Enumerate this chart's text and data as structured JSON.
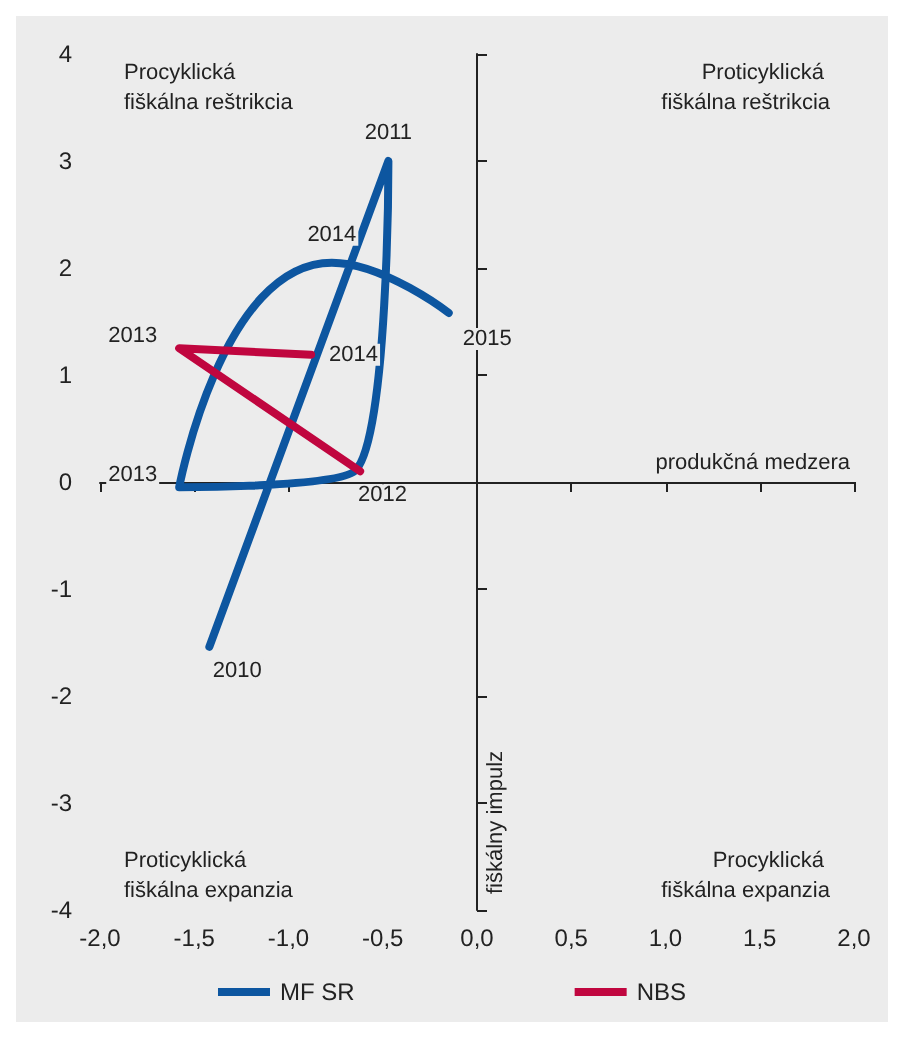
{
  "chart_data": {
    "type": "line",
    "xlabel": "produkčná medzera",
    "ylabel": "fiškálny impulz",
    "series": [
      {
        "name": "MF SR",
        "color": "#0d56a0",
        "x": [
          -1.42,
          -0.47,
          -0.65,
          -1.58,
          -0.77,
          -0.15
        ],
        "values": [
          -1.54,
          3.0,
          0.1,
          -0.05,
          2.05,
          1.58
        ]
      },
      {
        "name": "NBS",
        "color": "#c0063f",
        "x": [
          -0.62,
          -1.58,
          -0.88
        ],
        "values": [
          0.1,
          1.25,
          1.19
        ]
      }
    ],
    "xlim": [
      -2,
      2
    ],
    "ylim": [
      -4,
      4
    ],
    "xticks": [
      {
        "value": -2,
        "label": "-2,0"
      },
      {
        "value": -1.5,
        "label": "-1,5"
      },
      {
        "value": -1,
        "label": "-1,0"
      },
      {
        "value": -0.5,
        "label": "-0,5"
      },
      {
        "value": 0,
        "label": "0,0"
      },
      {
        "value": 0.5,
        "label": "0,5"
      },
      {
        "value": 1,
        "label": "1,0"
      },
      {
        "value": 1.5,
        "label": "1,5"
      },
      {
        "value": 2,
        "label": "2,0"
      }
    ],
    "yticks": [
      -4,
      -3,
      -2,
      -1,
      0,
      1,
      2,
      3,
      4
    ],
    "annotations": [
      "Procyklická fiškálna reštrikcia",
      "Proticyklická fiškálna reštrikcia",
      "Proticyklická fiškálna expanzia",
      "Procyklická fiškálna expanzia",
      {
        "text": "2010",
        "x": -1.42,
        "y": -1.54
      },
      {
        "text": "2011",
        "x": -0.47,
        "y": 3.0
      },
      {
        "text": "2012",
        "x": -0.65,
        "y": 0.1
      },
      {
        "text": "2013",
        "x": -1.58,
        "y": -0.05
      },
      {
        "text": "2014",
        "x": -0.77,
        "y": 2.05
      },
      {
        "text": "2015",
        "x": -0.15,
        "y": 1.58
      },
      {
        "text": "2013",
        "x": -1.58,
        "y": 1.25
      },
      {
        "text": "2014",
        "x": -0.88,
        "y": 1.19
      }
    ],
    "legend": "bottom",
    "marker": "none",
    "line_style": "solid"
  }
}
